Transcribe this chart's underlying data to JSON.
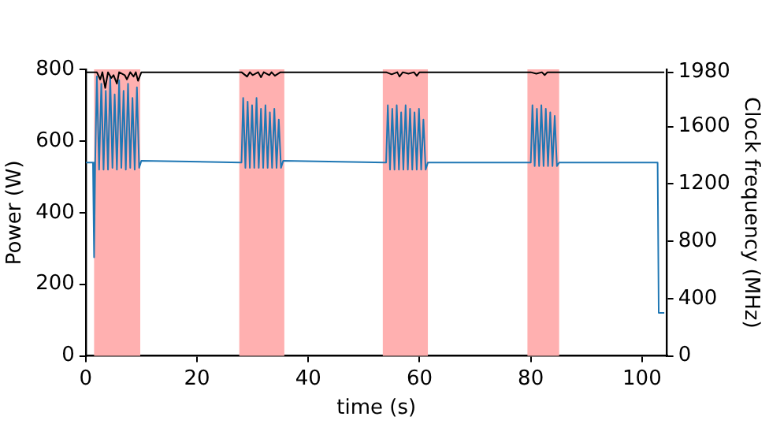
{
  "chart_data": {
    "type": "line",
    "xlabel": "time (s)",
    "ylabel": "Power (W)",
    "y2label": "Clock frequency (MHz)",
    "xlim": [
      0,
      104.5
    ],
    "xticks": [
      0,
      20,
      40,
      60,
      80,
      100
    ],
    "ylim": [
      0,
      800
    ],
    "yticks": [
      0,
      200,
      400,
      600,
      800
    ],
    "y2lim": [
      0,
      2000
    ],
    "y2ticks": [
      0,
      400,
      800,
      1200,
      1600,
      1980
    ],
    "grid": false,
    "legend": false,
    "bands": [
      {
        "axis": "x",
        "from": 1.5,
        "to": 9.8,
        "color": "#ffb0b0"
      },
      {
        "axis": "x",
        "from": 27.6,
        "to": 35.7,
        "color": "#ffb0b0"
      },
      {
        "axis": "x",
        "from": 53.4,
        "to": 61.5,
        "color": "#ffb0b0"
      },
      {
        "axis": "x",
        "from": 79.4,
        "to": 85.1,
        "color": "#ffb0b0"
      }
    ],
    "series": [
      {
        "color": "#000000",
        "axis": "y2",
        "x": [
          0,
          2,
          2.6,
          3,
          3.5,
          4,
          4.6,
          5,
          5.6,
          6,
          7,
          7.4,
          8,
          8.6,
          9,
          9.4,
          10,
          28,
          29,
          29.5,
          30,
          31,
          31.5,
          32,
          33,
          33.4,
          34,
          35,
          36,
          54,
          55,
          56,
          56.4,
          57,
          58,
          59,
          59.5,
          60,
          62,
          80,
          81,
          82,
          82.5,
          83,
          85,
          104
        ],
        "values": [
          1980,
          1980,
          1930,
          1980,
          1870,
          1980,
          1940,
          1960,
          1900,
          1980,
          1960,
          1930,
          1980,
          1950,
          1980,
          1920,
          1980,
          1980,
          1950,
          1980,
          1960,
          1980,
          1945,
          1980,
          1960,
          1980,
          1955,
          1980,
          1980,
          1980,
          1965,
          1980,
          1950,
          1980,
          1970,
          1980,
          1955,
          1980,
          1980,
          1980,
          1970,
          1980,
          1960,
          1980,
          1980,
          1980
        ]
      },
      {
        "color": "#1f77b4",
        "x": [
          0,
          1.3,
          1.5,
          1.7,
          2,
          2.4,
          2.8,
          3.2,
          3.6,
          4,
          4.4,
          4.8,
          5.2,
          5.6,
          6,
          6.4,
          6.8,
          7.2,
          7.6,
          8,
          8.4,
          8.8,
          9.2,
          9.6,
          10,
          28,
          28.3,
          28.7,
          29.1,
          29.5,
          29.9,
          30.3,
          30.7,
          31.1,
          31.5,
          31.9,
          32.3,
          32.7,
          33.1,
          33.5,
          33.9,
          34.3,
          34.7,
          35.1,
          35.5,
          54,
          54.3,
          54.7,
          55.1,
          55.5,
          55.9,
          56.3,
          56.7,
          57.1,
          57.5,
          57.9,
          58.3,
          58.7,
          59.1,
          59.5,
          59.9,
          60.3,
          60.7,
          61.1,
          61.5,
          80,
          80.3,
          80.7,
          81.1,
          81.5,
          81.9,
          82.3,
          82.7,
          83.1,
          83.5,
          83.9,
          84.3,
          84.7,
          85.1,
          102.8,
          103,
          104
        ],
        "values": [
          540,
          540,
          275,
          540,
          780,
          520,
          760,
          520,
          740,
          520,
          780,
          525,
          730,
          520,
          770,
          525,
          740,
          520,
          760,
          525,
          720,
          520,
          750,
          525,
          545,
          540,
          720,
          525,
          710,
          525,
          700,
          525,
          720,
          525,
          690,
          525,
          700,
          525,
          680,
          525,
          690,
          525,
          660,
          525,
          545,
          540,
          700,
          520,
          690,
          520,
          700,
          520,
          680,
          520,
          700,
          520,
          690,
          520,
          680,
          520,
          690,
          520,
          660,
          520,
          540,
          540,
          700,
          530,
          690,
          530,
          700,
          530,
          690,
          530,
          680,
          530,
          670,
          530,
          540,
          540,
          120,
          120
        ]
      }
    ]
  }
}
